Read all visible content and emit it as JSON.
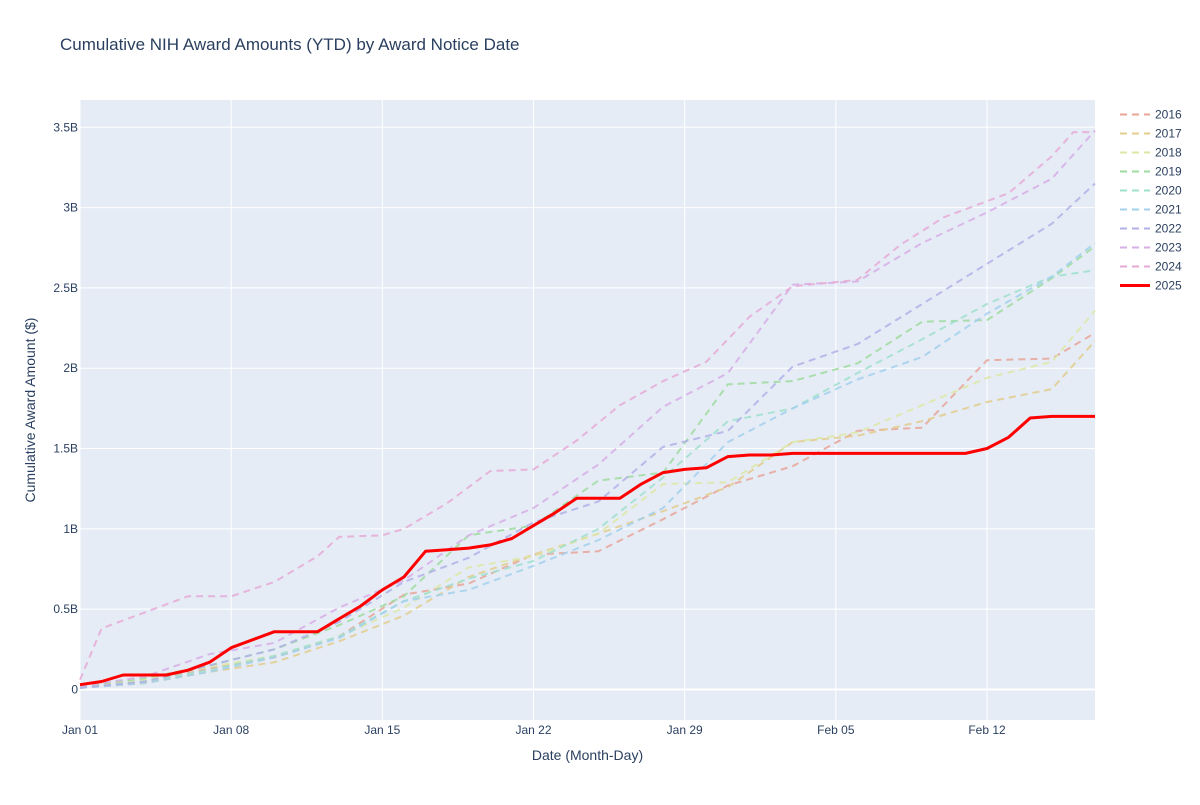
{
  "chart_data": {
    "type": "line",
    "title": "Cumulative NIH Award Amounts (YTD) by Award Notice Date",
    "xlabel": "Date (Month-Day)",
    "ylabel": "Cumulative Award Amount ($)",
    "x_ticks": [
      "Jan 01",
      "Jan 08",
      "Jan 15",
      "Jan 22",
      "Jan 29",
      "Feb 05",
      "Feb 12"
    ],
    "y_ticks": [
      "0",
      "0.5B",
      "1B",
      "1.5B",
      "2B",
      "2.5B",
      "3B",
      "3.5B"
    ],
    "xlim": [
      0,
      47
    ],
    "ylim": [
      -0.19,
      3.67
    ],
    "grid": true,
    "legend_position": "right",
    "plot_bgcolor": "#e5ecf6",
    "grid_color": "#ffffff",
    "text_color": "#2a3f5f",
    "series": [
      {
        "name": "2016",
        "color": "#e8a598",
        "dash": true,
        "x": [
          0,
          3,
          6,
          9,
          12,
          15,
          18,
          21,
          24,
          27,
          30,
          33,
          36,
          39,
          42,
          45,
          47
        ],
        "y": [
          0.02,
          0.05,
          0.13,
          0.2,
          0.33,
          0.59,
          0.66,
          0.84,
          0.86,
          1.06,
          1.27,
          1.39,
          1.61,
          1.63,
          2.05,
          2.06,
          2.22
        ]
      },
      {
        "name": "2017",
        "color": "#e3cc8c",
        "dash": true,
        "x": [
          0,
          3,
          6,
          9,
          12,
          15,
          18,
          21,
          24,
          27,
          30,
          33,
          36,
          39,
          42,
          45,
          47
        ],
        "y": [
          0.01,
          0.04,
          0.11,
          0.17,
          0.3,
          0.46,
          0.7,
          0.84,
          0.97,
          1.11,
          1.26,
          1.54,
          1.58,
          1.67,
          1.79,
          1.87,
          2.17
        ]
      },
      {
        "name": "2018",
        "color": "#dde7a4",
        "dash": true,
        "x": [
          0,
          3,
          6,
          9,
          12,
          15,
          18,
          21,
          24,
          27,
          30,
          33,
          36,
          39,
          42,
          45,
          47
        ],
        "y": [
          0.02,
          0.06,
          0.14,
          0.21,
          0.33,
          0.51,
          0.76,
          0.83,
          0.97,
          1.28,
          1.29,
          1.54,
          1.6,
          1.77,
          1.94,
          2.04,
          2.36
        ]
      },
      {
        "name": "2019",
        "color": "#9fdc9f",
        "dash": true,
        "x": [
          0,
          3,
          6,
          9,
          12,
          15,
          18,
          21,
          24,
          27,
          30,
          33,
          36,
          39,
          42,
          45,
          47
        ],
        "y": [
          0.02,
          0.07,
          0.15,
          0.25,
          0.4,
          0.58,
          0.96,
          1.02,
          1.3,
          1.35,
          1.9,
          1.92,
          2.03,
          2.29,
          2.3,
          2.56,
          2.76
        ]
      },
      {
        "name": "2020",
        "color": "#9fe0cc",
        "dash": true,
        "x": [
          0,
          3,
          6,
          9,
          12,
          15,
          18,
          21,
          24,
          27,
          30,
          33,
          36,
          39,
          42,
          45,
          47
        ],
        "y": [
          0.01,
          0.05,
          0.12,
          0.21,
          0.33,
          0.55,
          0.69,
          0.8,
          1.0,
          1.32,
          1.67,
          1.75,
          1.97,
          2.18,
          2.4,
          2.57,
          2.61
        ]
      },
      {
        "name": "2021",
        "color": "#a3d0ec",
        "dash": true,
        "x": [
          0,
          3,
          6,
          9,
          12,
          15,
          18,
          21,
          24,
          27,
          30,
          33,
          36,
          39,
          42,
          45,
          47
        ],
        "y": [
          0.01,
          0.04,
          0.11,
          0.2,
          0.32,
          0.55,
          0.62,
          0.77,
          0.93,
          1.13,
          1.54,
          1.75,
          1.93,
          2.07,
          2.34,
          2.57,
          2.78
        ]
      },
      {
        "name": "2022",
        "color": "#b2b0e8",
        "dash": true,
        "x": [
          0,
          3,
          6,
          9,
          12,
          15,
          18,
          21,
          24,
          27,
          30,
          33,
          36,
          39,
          42,
          45,
          47
        ],
        "y": [
          0.01,
          0.05,
          0.15,
          0.25,
          0.42,
          0.67,
          0.82,
          1.04,
          1.17,
          1.51,
          1.61,
          2.01,
          2.15,
          2.4,
          2.65,
          2.9,
          3.15
        ]
      },
      {
        "name": "2023",
        "color": "#d7aee6",
        "dash": true,
        "x": [
          0,
          3,
          6,
          9,
          12,
          15,
          18,
          21,
          24,
          27,
          30,
          33,
          36,
          39,
          42,
          45,
          47
        ],
        "y": [
          0.02,
          0.08,
          0.22,
          0.29,
          0.51,
          0.68,
          0.96,
          1.13,
          1.4,
          1.76,
          1.97,
          2.52,
          2.54,
          2.78,
          2.97,
          3.18,
          3.48
        ]
      },
      {
        "name": "2024",
        "color": "#e6aad6",
        "dash": true,
        "x": [
          0,
          1,
          2,
          3,
          5,
          7,
          9,
          11,
          12,
          14,
          15,
          17,
          19,
          21,
          23,
          25,
          27,
          29,
          31,
          33,
          36,
          38,
          40,
          43,
          45,
          46,
          47
        ],
        "y": [
          0.06,
          0.38,
          0.43,
          0.48,
          0.58,
          0.58,
          0.67,
          0.83,
          0.95,
          0.96,
          1.0,
          1.16,
          1.36,
          1.37,
          1.55,
          1.77,
          1.92,
          2.04,
          2.32,
          2.51,
          2.55,
          2.77,
          2.94,
          3.09,
          3.32,
          3.47,
          3.47
        ]
      },
      {
        "name": "2025",
        "color": "#ff0000",
        "dash": false,
        "x": [
          0,
          1,
          2,
          3,
          4,
          5,
          6,
          7,
          8,
          9,
          10,
          11,
          12,
          13,
          14,
          15,
          16,
          17,
          18,
          19,
          20,
          21,
          22,
          23,
          24,
          25,
          26,
          27,
          28,
          29,
          30,
          31,
          32,
          33,
          34,
          35,
          36,
          37,
          38,
          39,
          40,
          41,
          42,
          43,
          44,
          45,
          46,
          47
        ],
        "y": [
          0.03,
          0.05,
          0.09,
          0.09,
          0.09,
          0.12,
          0.17,
          0.26,
          0.31,
          0.36,
          0.36,
          0.36,
          0.44,
          0.52,
          0.62,
          0.7,
          0.86,
          0.87,
          0.88,
          0.9,
          0.94,
          1.02,
          1.1,
          1.19,
          1.19,
          1.19,
          1.28,
          1.35,
          1.37,
          1.38,
          1.45,
          1.46,
          1.46,
          1.47,
          1.47,
          1.47,
          1.47,
          1.47,
          1.47,
          1.47,
          1.47,
          1.47,
          1.5,
          1.57,
          1.69,
          1.7,
          1.7,
          1.7
        ]
      }
    ]
  }
}
